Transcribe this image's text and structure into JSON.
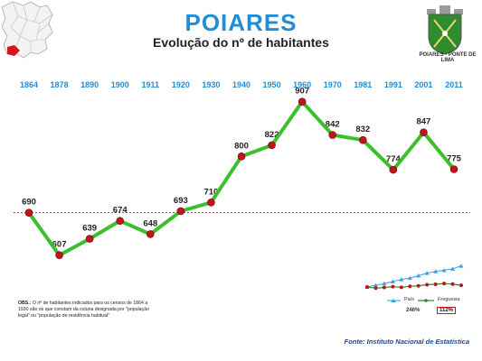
{
  "header": {
    "title": "POIARES",
    "subtitle": "Evolução do nº de habitantes",
    "crest_label": "POIARES - PONTE DE LIMA"
  },
  "chart_data": {
    "type": "line",
    "title": "Evolução do nº de habitantes",
    "categories": [
      "1864",
      "1878",
      "1890",
      "1900",
      "1911",
      "1920",
      "1930",
      "1940",
      "1950",
      "1960",
      "1970",
      "1981",
      "1991",
      "2001",
      "2011"
    ],
    "series": [
      {
        "name": "",
        "values": [
          690,
          607,
          639,
          674,
          648,
          693,
          710,
          800,
          822,
          907,
          842,
          832,
          774,
          847,
          775
        ]
      }
    ],
    "reference_line": 690,
    "ylim": [
      400,
      1000
    ],
    "line_color": "#3cbf2c",
    "marker_color": "#c0141c",
    "reference_color": "#e02020",
    "year_label_color": "#1e8fd6",
    "grid": false
  },
  "inset": {
    "legend_pais": "País",
    "legend_freguesia": "Freguesia",
    "pct_pais": "246%",
    "pct_freguesia": "112%",
    "pais_color": "#3aa0e0",
    "freguesia_color": "#2b8a24",
    "pais_values": [
      100,
      112,
      124,
      138,
      152,
      162,
      178,
      196,
      208,
      216,
      226,
      246
    ],
    "freguesia_values": [
      100,
      92,
      97,
      102,
      98,
      105,
      108,
      116,
      119,
      124,
      120,
      112
    ]
  },
  "footer": {
    "note_obs": "OBS.:",
    "note_text": "O nº de habitantes indicados para os censos de 1864 a 1930 são os que constam da coluna designada por \"população legal\" ou \"população de residência habitual\"",
    "source": "Fonte: Instituto Nacional de Estatística"
  }
}
